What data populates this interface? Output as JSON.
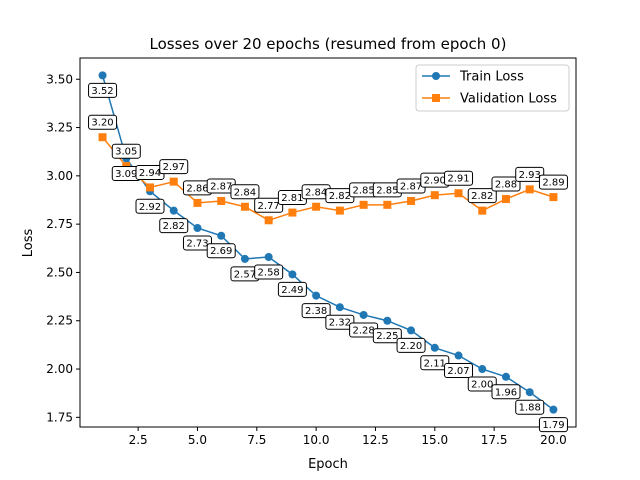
{
  "chart_data": {
    "type": "line",
    "title": "Losses over 20 epochs (resumed from epoch 0)",
    "xlabel": "Epoch",
    "ylabel": "Loss",
    "xlim": [
      0.05,
      20.95
    ],
    "ylim": [
      1.7,
      3.61
    ],
    "xticks": [
      2.5,
      5.0,
      7.5,
      10.0,
      12.5,
      15.0,
      17.5,
      20.0
    ],
    "xtick_labels": [
      "2.5",
      "5.0",
      "7.5",
      "10.0",
      "12.5",
      "15.0",
      "17.5",
      "20.0"
    ],
    "yticks": [
      1.75,
      2.0,
      2.25,
      2.5,
      2.75,
      3.0,
      3.25,
      3.5
    ],
    "ytick_labels": [
      "1.75",
      "2.00",
      "2.25",
      "2.50",
      "2.75",
      "3.00",
      "3.25",
      "3.50"
    ],
    "grid": false,
    "legend_position": "top-right",
    "x": [
      1,
      2,
      3,
      4,
      5,
      6,
      7,
      8,
      9,
      10,
      11,
      12,
      13,
      14,
      15,
      16,
      17,
      18,
      19,
      20
    ],
    "series": [
      {
        "name": "Train Loss",
        "color": "#1f77b4",
        "marker": "circle",
        "label_side": "below",
        "values": [
          3.52,
          3.09,
          2.92,
          2.82,
          2.73,
          2.69,
          2.57,
          2.58,
          2.49,
          2.38,
          2.32,
          2.28,
          2.25,
          2.2,
          2.11,
          2.07,
          2.0,
          1.96,
          1.88,
          1.79
        ],
        "labels": [
          "3.52",
          "3.09",
          "2.92",
          "2.82",
          "2.73",
          "2.69",
          "2.57",
          "2.58",
          "2.49",
          "2.38",
          "2.32",
          "2.28",
          "2.25",
          "2.20",
          "2.11",
          "2.07",
          "2.00",
          "1.96",
          "1.88",
          "1.79"
        ]
      },
      {
        "name": "Validation Loss",
        "color": "#ff7f0e",
        "marker": "square",
        "label_side": "above",
        "values": [
          3.2,
          3.05,
          2.94,
          2.97,
          2.86,
          2.87,
          2.84,
          2.77,
          2.81,
          2.84,
          2.82,
          2.85,
          2.85,
          2.87,
          2.9,
          2.91,
          2.82,
          2.88,
          2.93,
          2.89
        ],
        "labels": [
          "3.20",
          "3.05",
          "2.94",
          "2.97",
          "2.86",
          "2.87",
          "2.84",
          "2.77",
          "2.81",
          "2.84",
          "2.82",
          "2.85",
          "2.85",
          "2.87",
          "2.90",
          "2.91",
          "2.82",
          "2.88",
          "2.93",
          "2.89"
        ]
      }
    ]
  }
}
